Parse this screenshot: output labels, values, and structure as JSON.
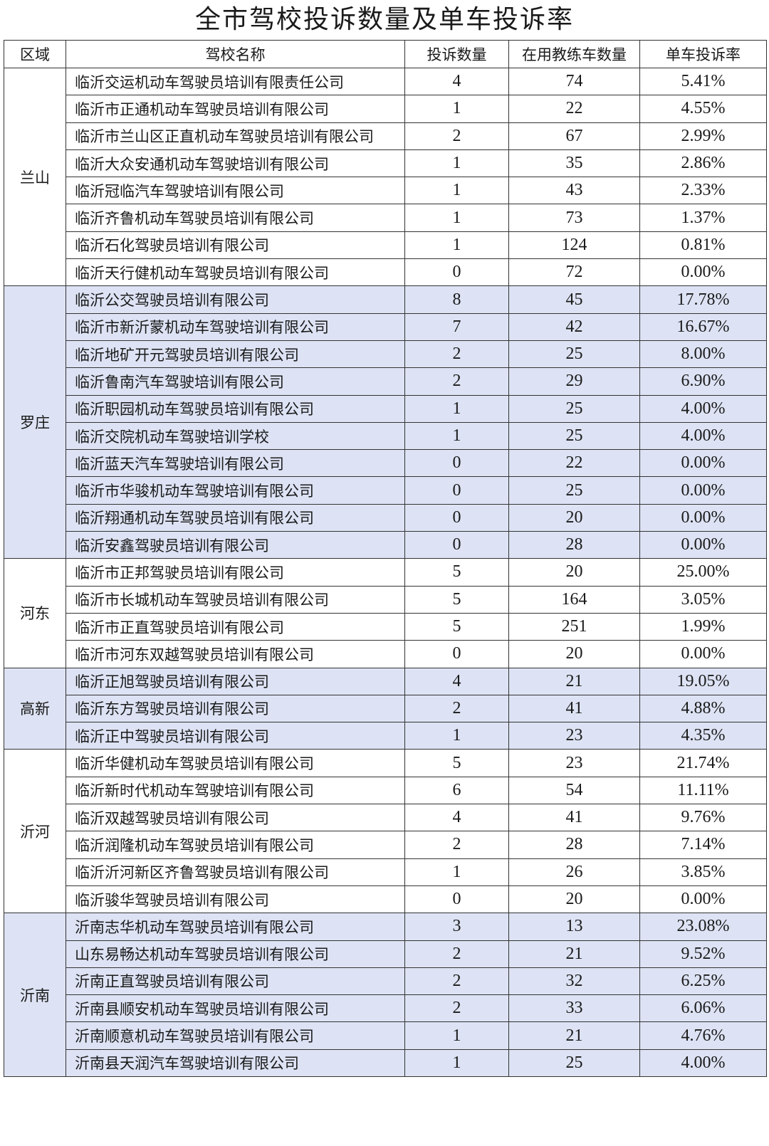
{
  "title": "全市驾校投诉数量及单车投诉率",
  "shade_color": "#dde3f4",
  "headers": [
    "区域",
    "驾校名称",
    "投诉数量",
    "在用教练车数量",
    "单车投诉率"
  ],
  "groups": [
    {
      "region": "兰山",
      "shaded": false,
      "rows": [
        [
          "临沂交运机动车驾驶员培训有限责任公司",
          "4",
          "74",
          "5.41%"
        ],
        [
          "临沂市正通机动车驾驶员培训有限公司",
          "1",
          "22",
          "4.55%"
        ],
        [
          "临沂市兰山区正直机动车驾驶员培训有限公司",
          "2",
          "67",
          "2.99%"
        ],
        [
          "临沂大众安通机动车驾驶培训有限公司",
          "1",
          "35",
          "2.86%"
        ],
        [
          "临沂冠临汽车驾驶培训有限公司",
          "1",
          "43",
          "2.33%"
        ],
        [
          "临沂齐鲁机动车驾驶员培训有限公司",
          "1",
          "73",
          "1.37%"
        ],
        [
          "临沂石化驾驶员培训有限公司",
          "1",
          "124",
          "0.81%"
        ],
        [
          "临沂天行健机动车驾驶员培训有限公司",
          "0",
          "72",
          "0.00%"
        ]
      ]
    },
    {
      "region": "罗庄",
      "shaded": true,
      "rows": [
        [
          "临沂公交驾驶员培训有限公司",
          "8",
          "45",
          "17.78%"
        ],
        [
          "临沂市新沂蒙机动车驾驶培训有限公司",
          "7",
          "42",
          "16.67%"
        ],
        [
          "临沂地矿开元驾驶员培训有限公司",
          "2",
          "25",
          "8.00%"
        ],
        [
          "临沂鲁南汽车驾驶培训有限公司",
          "2",
          "29",
          "6.90%"
        ],
        [
          "临沂职园机动车驾驶员培训有限公司",
          "1",
          "25",
          "4.00%"
        ],
        [
          "临沂交院机动车驾驶培训学校",
          "1",
          "25",
          "4.00%"
        ],
        [
          "临沂蓝天汽车驾驶培训有限公司",
          "0",
          "22",
          "0.00%"
        ],
        [
          "临沂市华骏机动车驾驶培训有限公司",
          "0",
          "25",
          "0.00%"
        ],
        [
          "临沂翔通机动车驾驶员培训有限公司",
          "0",
          "20",
          "0.00%"
        ],
        [
          "临沂安鑫驾驶员培训有限公司",
          "0",
          "28",
          "0.00%"
        ]
      ]
    },
    {
      "region": "河东",
      "shaded": false,
      "rows": [
        [
          "临沂市正邦驾驶员培训有限公司",
          "5",
          "20",
          "25.00%"
        ],
        [
          "临沂市长城机动车驾驶员培训有限公司",
          "5",
          "164",
          "3.05%"
        ],
        [
          "临沂市正直驾驶员培训有限公司",
          "5",
          "251",
          "1.99%"
        ],
        [
          "临沂市河东双越驾驶员培训有限公司",
          "0",
          "20",
          "0.00%"
        ]
      ]
    },
    {
      "region": "高新",
      "shaded": true,
      "rows": [
        [
          "临沂正旭驾驶员培训有限公司",
          "4",
          "21",
          "19.05%"
        ],
        [
          "临沂东方驾驶员培训有限公司",
          "2",
          "41",
          "4.88%"
        ],
        [
          "临沂正中驾驶员培训有限公司",
          "1",
          "23",
          "4.35%"
        ]
      ]
    },
    {
      "region": "沂河",
      "shaded": false,
      "rows": [
        [
          "临沂华健机动车驾驶员培训有限公司",
          "5",
          "23",
          "21.74%"
        ],
        [
          "临沂新时代机动车驾驶培训有限公司",
          "6",
          "54",
          "11.11%"
        ],
        [
          "临沂双越驾驶员培训有限公司",
          "4",
          "41",
          "9.76%"
        ],
        [
          "临沂润隆机动车驾驶员培训有限公司",
          "2",
          "28",
          "7.14%"
        ],
        [
          "临沂沂河新区齐鲁驾驶员培训有限公司",
          "1",
          "26",
          "3.85%"
        ],
        [
          "临沂骏华驾驶员培训有限公司",
          "0",
          "20",
          "0.00%"
        ]
      ]
    },
    {
      "region": "沂南",
      "shaded": true,
      "rows": [
        [
          "沂南志华机动车驾驶员培训有限公司",
          "3",
          "13",
          "23.08%"
        ],
        [
          "山东易畅达机动车驾驶员培训有限公司",
          "2",
          "21",
          "9.52%"
        ],
        [
          "沂南正直驾驶员培训有限公司",
          "2",
          "32",
          "6.25%"
        ],
        [
          "沂南县顺安机动车驾驶员培训有限公司",
          "2",
          "33",
          "6.06%"
        ],
        [
          "沂南顺意机动车驾驶员培训有限公司",
          "1",
          "21",
          "4.76%"
        ],
        [
          "沂南县天润汽车驾驶培训有限公司",
          "1",
          "25",
          "4.00%"
        ]
      ]
    }
  ]
}
